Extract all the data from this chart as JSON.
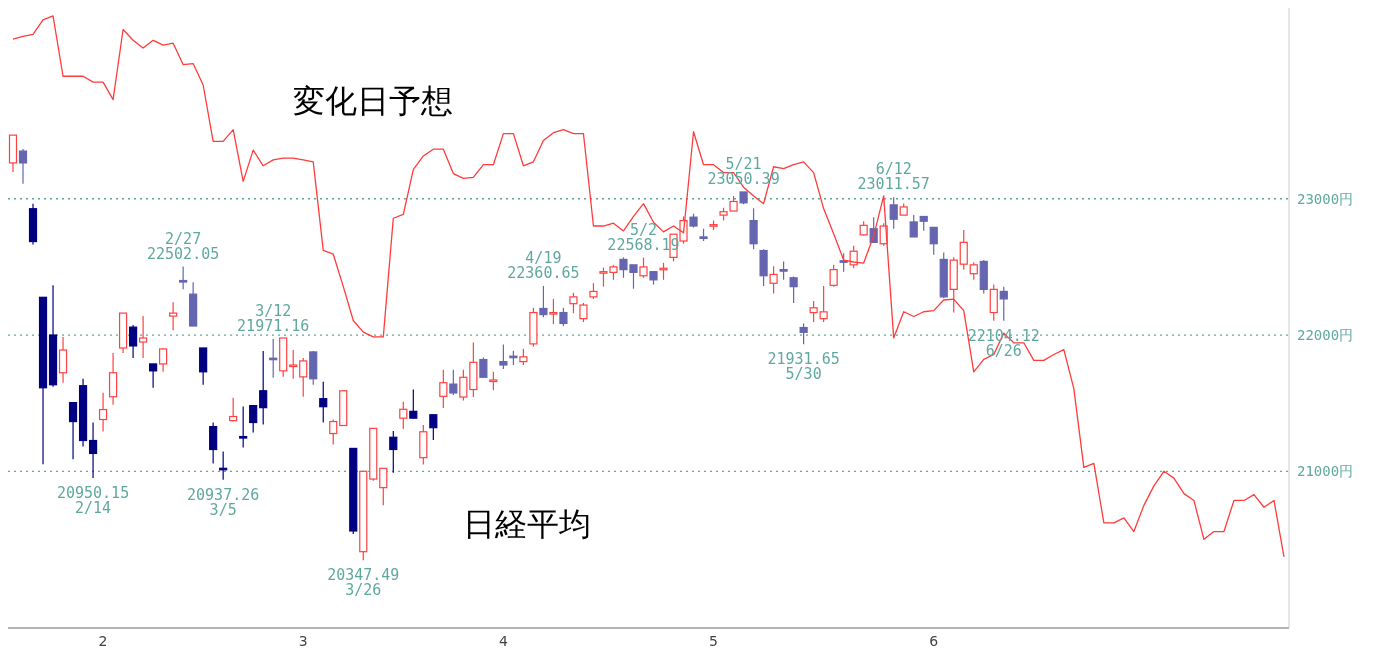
{
  "chart_data": {
    "type": "candlestick",
    "categories": [
      null,
      null,
      null,
      null,
      null,
      null,
      null,
      null,
      null,
      "2",
      null,
      null,
      null,
      null,
      null,
      null,
      null,
      null,
      null,
      null,
      null,
      null,
      null,
      null,
      null,
      null,
      null,
      null,
      null,
      "3",
      null,
      null,
      null,
      null,
      null,
      null,
      null,
      null,
      null,
      null,
      null,
      null,
      null,
      null,
      null,
      null,
      null,
      null,
      null,
      "4",
      null,
      null,
      null,
      null,
      null,
      null,
      null,
      null,
      null,
      null,
      null,
      null,
      null,
      null,
      null,
      null,
      null,
      null,
      null,
      null,
      "5",
      null,
      null,
      null,
      null,
      null,
      null,
      null,
      null,
      null,
      null,
      null,
      null,
      null,
      null,
      null,
      null,
      null,
      null,
      null,
      null,
      null,
      "6",
      null,
      null,
      null,
      null,
      null,
      null,
      null,
      null,
      null,
      null,
      null,
      null,
      null,
      null,
      null,
      null,
      null,
      null,
      null,
      null,
      null,
      null,
      null,
      null,
      null,
      null,
      null,
      null,
      null,
      null,
      null,
      null,
      null,
      null,
      null
    ],
    "series": [
      {
        "name": "日経平均",
        "ohlc": [
          [
            23263,
            23467,
            23197,
            23467
          ],
          [
            23350,
            23365,
            23110,
            23263
          ],
          [
            22927,
            22964,
            22664,
            22686
          ],
          [
            22277,
            22277,
            21051,
            21613
          ],
          [
            22000,
            22365,
            21620,
            21635
          ],
          [
            21723,
            21985,
            21650,
            21890
          ],
          [
            21504,
            21504,
            21088,
            21365
          ],
          [
            21628,
            21679,
            21182,
            21226
          ],
          [
            21226,
            21358,
            20950.15,
            21131
          ],
          [
            21380,
            21577,
            21292,
            21453
          ],
          [
            21547,
            21869,
            21489,
            21723
          ],
          [
            21905,
            22161,
            21869,
            22161
          ],
          [
            22058,
            22073,
            21832,
            21920
          ],
          [
            21949,
            22139,
            21832,
            21978
          ],
          [
            21788,
            21788,
            21613,
            21737
          ],
          [
            21788,
            21905,
            21730,
            21898
          ],
          [
            22139,
            22241,
            22036,
            22161
          ],
          [
            22400,
            22502.05,
            22336,
            22395
          ],
          [
            22300,
            22387,
            22066,
            22066
          ],
          [
            21905,
            21905,
            21635,
            21730
          ],
          [
            21328,
            21358,
            21058,
            21160
          ],
          [
            21022,
            21146,
            20937.26,
            21015
          ],
          [
            21372,
            21540,
            21365,
            21402
          ],
          [
            21255,
            21475,
            21175,
            21248
          ],
          [
            21482,
            21482,
            21285,
            21358
          ],
          [
            21591,
            21883,
            21343,
            21467
          ],
          [
            21830,
            21971.16,
            21686,
            21820
          ],
          [
            21737,
            21978,
            21693,
            21978
          ],
          [
            21770,
            21890,
            21679,
            21780
          ],
          [
            21693,
            21832,
            21547,
            21810
          ],
          [
            21876,
            21883,
            21635,
            21679
          ],
          [
            21533,
            21657,
            21358,
            21474
          ],
          [
            21277,
            21380,
            21197,
            21365
          ],
          [
            21336,
            21591,
            21336,
            21591
          ],
          [
            21168,
            21168,
            20540,
            20562
          ],
          [
            20410,
            21000,
            20347.49,
            21000
          ],
          [
            20943,
            21315,
            20930,
            21315
          ],
          [
            20880,
            21022,
            20750,
            21022
          ],
          [
            21250,
            21295,
            20990,
            21160
          ],
          [
            21390,
            21510,
            21310,
            21455
          ],
          [
            21440,
            21600,
            21390,
            21390
          ],
          [
            21100,
            21340,
            21050,
            21290
          ],
          [
            21415,
            21415,
            21230,
            21320
          ],
          [
            21550,
            21745,
            21465,
            21650
          ],
          [
            21640,
            21745,
            21560,
            21575
          ],
          [
            21545,
            21745,
            21520,
            21690
          ],
          [
            21600,
            21945,
            21545,
            21800
          ],
          [
            21820,
            21835,
            21690,
            21690
          ],
          [
            21660,
            21730,
            21595,
            21670
          ],
          [
            21805,
            21930,
            21750,
            21780
          ],
          [
            21845,
            21885,
            21780,
            21840
          ],
          [
            21805,
            21900,
            21780,
            21840
          ],
          [
            21935,
            22200,
            21915,
            22165
          ],
          [
            22195,
            22360.65,
            22130,
            22150
          ],
          [
            22160,
            22265,
            22080,
            22165
          ],
          [
            22165,
            22200,
            22065,
            22085
          ],
          [
            22230,
            22310,
            22160,
            22280
          ],
          [
            22120,
            22235,
            22095,
            22220
          ],
          [
            22280,
            22380,
            22265,
            22320
          ],
          [
            22460,
            22495,
            22355,
            22465
          ],
          [
            22460,
            22515,
            22405,
            22500
          ],
          [
            22555,
            22570,
            22420,
            22480
          ],
          [
            22515,
            22515,
            22340,
            22460
          ],
          [
            22435,
            22568.19,
            22420,
            22500
          ],
          [
            22465,
            22465,
            22370,
            22405
          ],
          [
            22480,
            22530,
            22405,
            22490
          ],
          [
            22570,
            22740,
            22540,
            22740
          ],
          [
            22690,
            22870,
            22670,
            22840
          ],
          [
            22865,
            22890,
            22790,
            22800
          ],
          [
            22720,
            22780,
            22690,
            22710
          ],
          [
            22800,
            22840,
            22770,
            22810
          ],
          [
            22880,
            22935,
            22840,
            22905
          ],
          [
            22910,
            23020,
            22910,
            22980
          ],
          [
            23050,
            23050.39,
            22960,
            22970
          ],
          [
            22840,
            22930,
            22630,
            22670
          ],
          [
            22620,
            22630,
            22360,
            22435
          ],
          [
            22380,
            22505,
            22305,
            22445
          ],
          [
            22480,
            22540,
            22405,
            22475
          ],
          [
            22420,
            22430,
            22235,
            22355
          ],
          [
            22055,
            22085,
            21931.65,
            22020
          ],
          [
            22165,
            22250,
            22095,
            22200
          ],
          [
            22120,
            22360,
            22095,
            22170
          ],
          [
            22365,
            22515,
            22355,
            22480
          ],
          [
            22545,
            22600,
            22465,
            22540
          ],
          [
            22515,
            22655,
            22490,
            22615
          ],
          [
            22735,
            22835,
            22730,
            22805
          ],
          [
            22780,
            22865,
            22680,
            22680
          ],
          [
            22670,
            22820,
            22655,
            22800
          ],
          [
            22955,
            23011.57,
            22780,
            22850
          ],
          [
            22880,
            22965,
            22880,
            22940
          ],
          [
            22830,
            22880,
            22720,
            22720
          ],
          [
            22870,
            22870,
            22765,
            22835
          ],
          [
            22790,
            22790,
            22590,
            22670
          ],
          [
            22555,
            22605,
            22270,
            22280
          ],
          [
            22335,
            22570,
            22165,
            22550
          ],
          [
            22520,
            22770,
            22480,
            22680
          ],
          [
            22450,
            22535,
            22405,
            22515
          ],
          [
            22540,
            22550,
            22305,
            22335
          ],
          [
            22165,
            22370,
            22105,
            22335
          ],
          [
            22320,
            22355,
            22104.12,
            22265
          ],
          null,
          null,
          null,
          null,
          null,
          null,
          null,
          null,
          null,
          null,
          null,
          null,
          null,
          null,
          null,
          null,
          null,
          null,
          null,
          null,
          null,
          null,
          null,
          null,
          null,
          null,
          null,
          null
        ],
        "colors": [
          "#ff4040",
          "#6565b0",
          "#000080",
          "#000080",
          "#000080",
          "#ff4040",
          "#000080",
          "#000080",
          "#000080",
          "#ff4040",
          "#ff4040",
          "#ff4040",
          "#000080",
          "#ff4040",
          "#000080",
          "#ff4040",
          "#ff4040",
          "#6565b0",
          "#6565b0",
          "#000080",
          "#000080",
          "#000080",
          "#ff4040",
          "#000080",
          "#000080",
          "#000080",
          "#6565b0",
          "#ff4040",
          "#ff4040",
          "#ff4040",
          "#6565b0",
          "#000080",
          "#ff4040",
          "#ff4040",
          "#000080",
          "#ff4040",
          "#ff4040",
          "#ff4040",
          "#000080",
          "#ff4040",
          "#000080",
          "#ff4040",
          "#000080",
          "#ff4040",
          "#6565b0",
          "#ff4040",
          "#ff4040",
          "#6565b0",
          "#ff4040",
          "#6565b0",
          "#6565b0",
          "#ff4040",
          "#ff4040",
          "#6565b0",
          "#ff4040",
          "#6565b0",
          "#ff4040",
          "#ff4040",
          "#ff4040",
          "#ff4040",
          "#ff4040",
          "#6565b0",
          "#6565b0",
          "#ff4040",
          "#6565b0",
          "#ff4040",
          "#ff4040",
          "#ff4040",
          "#6565b0",
          "#6565b0",
          "#ff4040",
          "#ff4040",
          "#ff4040",
          "#6565b0",
          "#6565b0",
          "#6565b0",
          "#ff4040",
          "#6565b0",
          "#6565b0",
          "#6565b0",
          "#ff4040",
          "#ff4040",
          "#ff4040",
          "#6565b0",
          "#ff4040",
          "#ff4040",
          "#6565b0",
          "#ff4040",
          "#6565b0",
          "#ff4040",
          "#6565b0",
          "#6565b0",
          "#6565b0",
          "#6565b0",
          "#ff4040",
          "#ff4040",
          "#ff4040",
          "#6565b0",
          "#ff4040",
          "#6565b0",
          null,
          null,
          null,
          null,
          null,
          null,
          null,
          null,
          null,
          null,
          null,
          null,
          null,
          null,
          null,
          null,
          null,
          null,
          null,
          null,
          null,
          null,
          null,
          null,
          null,
          null,
          null,
          null
        ]
      },
      {
        "type": "line",
        "name": "変化日予想",
        "color": "#ff3b3b",
        "values": [
          24171,
          24192,
          24206,
          24313,
          24342,
          23899,
          23899,
          23899,
          23856,
          23856,
          23728,
          24242,
          24163,
          24106,
          24163,
          24128,
          24142,
          23985,
          23992,
          23835,
          23421,
          23421,
          23507,
          23128,
          23357,
          23242,
          23285,
          23299,
          23299,
          23285,
          23271,
          22621,
          22593,
          22357,
          22107,
          22021,
          21986,
          21986,
          22857,
          22885,
          23214,
          23314,
          23364,
          23364,
          23185,
          23150,
          23157,
          23250,
          23250,
          23478,
          23478,
          23242,
          23271,
          23428,
          23485,
          23507,
          23478,
          23478,
          22800,
          22800,
          22821,
          22764,
          22871,
          22964,
          22828,
          22757,
          22800,
          22750,
          23492,
          23250,
          23250,
          23192,
          23192,
          23085,
          23021,
          22964,
          23235,
          23221,
          23250,
          23271,
          23192,
          22928,
          22743,
          22550,
          22536,
          22528,
          22728,
          23021,
          21979,
          22171,
          22136,
          22171,
          22179,
          22257,
          22264,
          22179,
          21729,
          21821,
          21857,
          22014,
          21943,
          21943,
          21814,
          21814,
          21857,
          21893,
          21607,
          21029,
          21058,
          20622,
          20622,
          20658,
          20558,
          20750,
          20893,
          21000,
          20950,
          20836,
          20786,
          20501,
          20558,
          20558,
          20786,
          20786,
          20829,
          20736,
          20786,
          20372
        ]
      }
    ],
    "ylim": [
      19850,
      24400
    ],
    "yticks": [
      {
        "value": 21000,
        "label": "21000円"
      },
      {
        "value": 22000,
        "label": "22000円"
      },
      {
        "value": 23000,
        "label": "23000円"
      }
    ],
    "grid": "y",
    "annotations": [
      {
        "text": "20950.15\n2/14",
        "y": 20950.15
      },
      {
        "text": "2/27\n22502.05",
        "y": 22502.05
      },
      {
        "text": "20937.26\n3/5",
        "y": 20937.26
      },
      {
        "text": "3/12\n21971.16",
        "y": 21971.16
      },
      {
        "text": "20347.49\n3/26",
        "y": 20347.49
      },
      {
        "text": "4/19\n22360.65",
        "y": 22360.65
      },
      {
        "text": "5/2\n22568.19",
        "y": 22568.19
      },
      {
        "text": "5/21\n23050.39",
        "y": 23050.39
      },
      {
        "text": "21931.65\n5/30",
        "y": 21931.65
      },
      {
        "text": "6/12\n23011.57",
        "y": 23011.57
      },
      {
        "text": "22104.12\n6/26",
        "y": 22104.12
      }
    ]
  }
}
